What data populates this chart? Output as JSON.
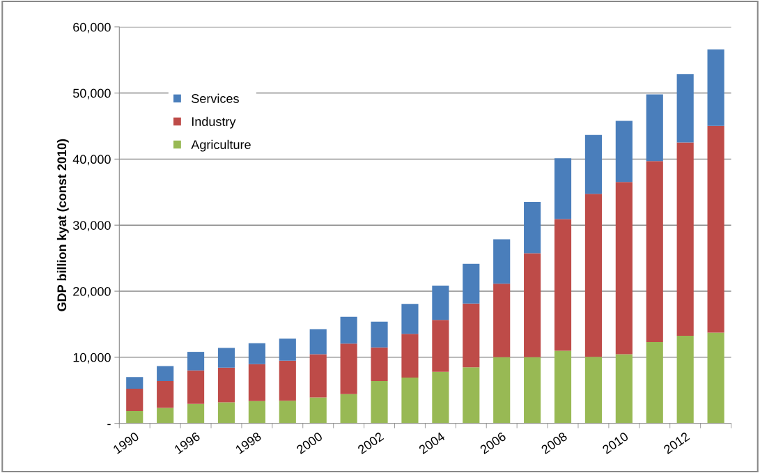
{
  "chart_data": {
    "type": "bar",
    "stacked": true,
    "ylabel": "GDP billion kyat (const 2010)",
    "categories": [
      "1990",
      null,
      "1996",
      null,
      "1998",
      null,
      "2000",
      null,
      "2002",
      null,
      "2004",
      null,
      "2006",
      null,
      "2008",
      null,
      "2010",
      null,
      "2012",
      null
    ],
    "series": [
      {
        "name": "Agriculture",
        "color": "#98b954",
        "values": [
          1880,
          2330,
          2940,
          3180,
          3360,
          3430,
          3920,
          4420,
          6400,
          6930,
          7810,
          8480,
          10010,
          10010,
          11000,
          10070,
          10470,
          12300,
          13260,
          13720
        ]
      },
      {
        "name": "Industry",
        "color": "#be4b48",
        "values": [
          3360,
          4070,
          5060,
          5240,
          5590,
          6050,
          6550,
          7640,
          5090,
          6610,
          7850,
          9650,
          11130,
          15730,
          19930,
          24680,
          26050,
          27400,
          29260,
          31290
        ]
      },
      {
        "name": "Services",
        "color": "#4a7ebb",
        "values": [
          1760,
          2260,
          2820,
          3000,
          3180,
          3350,
          3780,
          4060,
          3890,
          4530,
          5200,
          6020,
          6720,
          7770,
          9200,
          8910,
          9260,
          10080,
          10370,
          11580
        ]
      }
    ],
    "ylim": [
      0,
      60000
    ],
    "yticks": [
      {
        "value": 0,
        "label": "-"
      },
      {
        "value": 10000,
        "label": "10,000"
      },
      {
        "value": 20000,
        "label": "20,000"
      },
      {
        "value": 30000,
        "label": "30,000"
      },
      {
        "value": 40000,
        "label": "40,000"
      },
      {
        "value": 50000,
        "label": "50,000"
      },
      {
        "value": 60000,
        "label": "60,000"
      }
    ],
    "grid": "y",
    "legend": "top left"
  }
}
